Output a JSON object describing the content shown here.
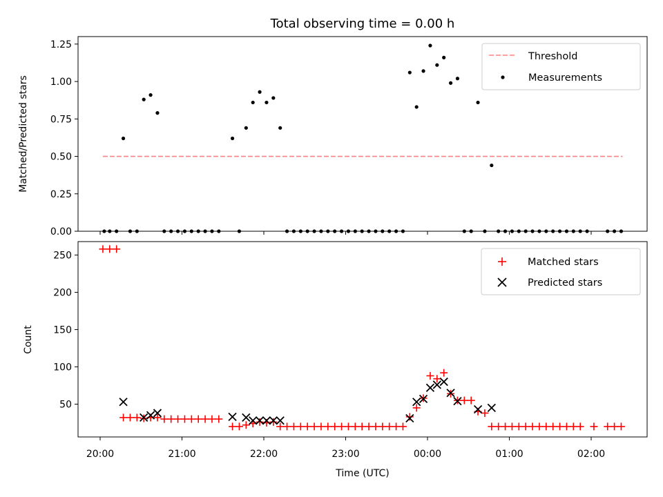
{
  "figure": {
    "title": "Total observing time = 0.00 h",
    "xlabel": "Time (UTC)",
    "x_ticks": [
      "20:00",
      "21:00",
      "22:00",
      "23:00",
      "00:00",
      "01:00",
      "02:00"
    ]
  },
  "colors": {
    "threshold": "#ff8080",
    "measurements": "#000000",
    "matched": "#ff0000",
    "predicted": "#000000"
  },
  "chart_data": [
    {
      "type": "scatter",
      "ylabel": "Matched/Predicted stars",
      "ylim": [
        0,
        1.3
      ],
      "y_ticks": [
        "0.00",
        "0.25",
        "0.50",
        "0.75",
        "1.00",
        "1.25"
      ],
      "x_unit": "time of day (UTC), hours after 20:00",
      "legend_position": "top-right",
      "threshold": {
        "name": "Threshold",
        "value": 0.5,
        "x_range": [
          "20:02",
          "02:23"
        ],
        "style": "dashed"
      },
      "series": [
        {
          "name": "Measurements",
          "points": [
            [
              "20:03",
              0
            ],
            [
              "20:07",
              0
            ],
            [
              "20:12",
              0
            ],
            [
              "20:17",
              0.62
            ],
            [
              "20:22",
              0
            ],
            [
              "20:27",
              0
            ],
            [
              "20:32",
              0.88
            ],
            [
              "20:37",
              0.91
            ],
            [
              "20:42",
              0.79
            ],
            [
              "20:47",
              0
            ],
            [
              "20:52",
              0
            ],
            [
              "20:57",
              0
            ],
            [
              "21:02",
              0
            ],
            [
              "21:07",
              0
            ],
            [
              "21:12",
              0
            ],
            [
              "21:17",
              0
            ],
            [
              "21:22",
              0
            ],
            [
              "21:27",
              0
            ],
            [
              "21:37",
              0.62
            ],
            [
              "21:42",
              0
            ],
            [
              "21:47",
              0.69
            ],
            [
              "21:52",
              0.86
            ],
            [
              "21:57",
              0.93
            ],
            [
              "22:02",
              0.86
            ],
            [
              "22:07",
              0.89
            ],
            [
              "22:12",
              0.69
            ],
            [
              "22:17",
              0
            ],
            [
              "22:22",
              0
            ],
            [
              "22:27",
              0
            ],
            [
              "22:32",
              0
            ],
            [
              "22:37",
              0
            ],
            [
              "22:42",
              0
            ],
            [
              "22:47",
              0
            ],
            [
              "22:52",
              0
            ],
            [
              "22:57",
              0
            ],
            [
              "23:02",
              0
            ],
            [
              "23:07",
              0
            ],
            [
              "23:12",
              0
            ],
            [
              "23:17",
              0
            ],
            [
              "23:22",
              0
            ],
            [
              "23:27",
              0
            ],
            [
              "23:32",
              0
            ],
            [
              "23:37",
              0
            ],
            [
              "23:42",
              0
            ],
            [
              "23:47",
              1.06
            ],
            [
              "23:52",
              0.83
            ],
            [
              "23:57",
              1.07
            ],
            [
              "00:02",
              1.24
            ],
            [
              "00:07",
              1.11
            ],
            [
              "00:12",
              1.16
            ],
            [
              "00:17",
              0.99
            ],
            [
              "00:22",
              1.02
            ],
            [
              "00:27",
              0
            ],
            [
              "00:32",
              0
            ],
            [
              "00:37",
              0.86
            ],
            [
              "00:42",
              0
            ],
            [
              "00:47",
              0.44
            ],
            [
              "00:52",
              0
            ],
            [
              "00:57",
              0
            ],
            [
              "01:02",
              0
            ],
            [
              "01:07",
              0
            ],
            [
              "01:12",
              0
            ],
            [
              "01:17",
              0
            ],
            [
              "01:22",
              0
            ],
            [
              "01:27",
              0
            ],
            [
              "01:32",
              0
            ],
            [
              "01:37",
              0
            ],
            [
              "01:42",
              0
            ],
            [
              "01:47",
              0
            ],
            [
              "01:52",
              0
            ],
            [
              "01:57",
              0
            ],
            [
              "02:12",
              0
            ],
            [
              "02:17",
              0
            ],
            [
              "02:22",
              0
            ]
          ]
        }
      ]
    },
    {
      "type": "scatter",
      "ylabel": "Count",
      "ylim": [
        6,
        268
      ],
      "y_ticks": [
        "50",
        "100",
        "150",
        "200",
        "250"
      ],
      "x_unit": "time of day (UTC), hours after 20:00",
      "legend_position": "top-right",
      "series": [
        {
          "name": "Matched stars",
          "marker": "+",
          "points": [
            [
              "20:02",
              258
            ],
            [
              "20:07",
              258
            ],
            [
              "20:12",
              258
            ],
            [
              "20:17",
              32
            ],
            [
              "20:22",
              32
            ],
            [
              "20:27",
              32
            ],
            [
              "20:32",
              31
            ],
            [
              "20:37",
              32
            ],
            [
              "20:42",
              32
            ],
            [
              "20:47",
              30
            ],
            [
              "20:52",
              30
            ],
            [
              "20:57",
              30
            ],
            [
              "21:02",
              30
            ],
            [
              "21:07",
              30
            ],
            [
              "21:12",
              30
            ],
            [
              "21:17",
              30
            ],
            [
              "21:22",
              30
            ],
            [
              "21:27",
              30
            ],
            [
              "21:37",
              20
            ],
            [
              "21:42",
              20
            ],
            [
              "21:47",
              22
            ],
            [
              "21:52",
              24
            ],
            [
              "21:57",
              26
            ],
            [
              "22:02",
              25
            ],
            [
              "22:07",
              26
            ],
            [
              "22:12",
              20
            ],
            [
              "22:17",
              20
            ],
            [
              "22:22",
              20
            ],
            [
              "22:27",
              20
            ],
            [
              "22:32",
              20
            ],
            [
              "22:37",
              20
            ],
            [
              "22:42",
              20
            ],
            [
              "22:47",
              20
            ],
            [
              "22:52",
              20
            ],
            [
              "22:57",
              20
            ],
            [
              "23:02",
              20
            ],
            [
              "23:07",
              20
            ],
            [
              "23:12",
              20
            ],
            [
              "23:17",
              20
            ],
            [
              "23:22",
              20
            ],
            [
              "23:27",
              20
            ],
            [
              "23:32",
              20
            ],
            [
              "23:37",
              20
            ],
            [
              "23:42",
              20
            ],
            [
              "23:47",
              33
            ],
            [
              "23:52",
              45
            ],
            [
              "23:57",
              58
            ],
            [
              "00:02",
              88
            ],
            [
              "00:07",
              84
            ],
            [
              "00:12",
              92
            ],
            [
              "00:17",
              64
            ],
            [
              "00:22",
              55
            ],
            [
              "00:27",
              55
            ],
            [
              "00:32",
              55
            ],
            [
              "00:37",
              40
            ],
            [
              "00:42",
              38
            ],
            [
              "00:47",
              20
            ],
            [
              "00:52",
              20
            ],
            [
              "00:57",
              20
            ],
            [
              "01:02",
              20
            ],
            [
              "01:07",
              20
            ],
            [
              "01:12",
              20
            ],
            [
              "01:17",
              20
            ],
            [
              "01:22",
              20
            ],
            [
              "01:27",
              20
            ],
            [
              "01:32",
              20
            ],
            [
              "01:37",
              20
            ],
            [
              "01:42",
              20
            ],
            [
              "01:47",
              20
            ],
            [
              "01:52",
              20
            ],
            [
              "02:02",
              20
            ],
            [
              "02:12",
              20
            ],
            [
              "02:17",
              20
            ],
            [
              "02:22",
              20
            ]
          ]
        },
        {
          "name": "Predicted stars",
          "marker": "x",
          "points": [
            [
              "20:17",
              53
            ],
            [
              "20:32",
              32
            ],
            [
              "20:37",
              35
            ],
            [
              "20:42",
              38
            ],
            [
              "21:37",
              33
            ],
            [
              "21:47",
              32
            ],
            [
              "21:52",
              28
            ],
            [
              "21:57",
              28
            ],
            [
              "22:02",
              28
            ],
            [
              "22:07",
              28
            ],
            [
              "22:12",
              28
            ],
            [
              "23:47",
              31
            ],
            [
              "23:52",
              53
            ],
            [
              "23:57",
              57
            ],
            [
              "00:02",
              72
            ],
            [
              "00:07",
              76
            ],
            [
              "00:12",
              80
            ],
            [
              "00:17",
              65
            ],
            [
              "00:22",
              54
            ],
            [
              "00:37",
              43
            ],
            [
              "00:47",
              45
            ]
          ]
        }
      ]
    }
  ]
}
